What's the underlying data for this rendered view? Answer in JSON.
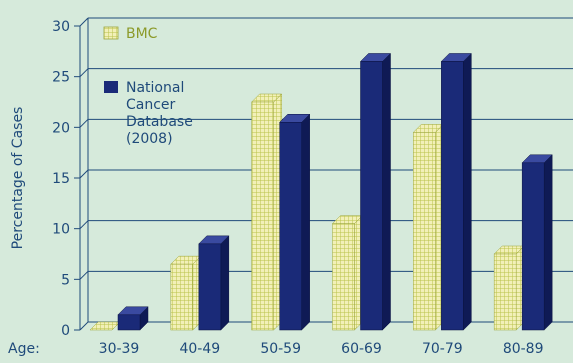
{
  "chart_data": {
    "type": "bar",
    "title": "",
    "xlabel": "Age:",
    "ylabel": "Percentage of Cases",
    "ylim": [
      0,
      30
    ],
    "yticks": [
      0,
      5,
      10,
      15,
      20,
      25,
      30
    ],
    "grid": true,
    "legend_position": "top-left",
    "categories": [
      "30-39",
      "40-49",
      "50-59",
      "60-69",
      "70-79",
      "80-89"
    ],
    "series": [
      {
        "name": "BMC",
        "values": [
          0,
          6.5,
          22.5,
          10.5,
          19.5,
          7.5
        ],
        "color": "#f2f0b8",
        "pattern": "grid",
        "legend_label_lines": [
          "BMC"
        ]
      },
      {
        "name": "National Cancer Database (2008)",
        "values": [
          1.5,
          8.5,
          20.5,
          26.5,
          26.5,
          16.5
        ],
        "color": "#1a2a78",
        "pattern": "solid",
        "legend_label_lines": [
          "National",
          "Cancer",
          "Database",
          "(2008)"
        ]
      }
    ],
    "colors": {
      "background": "#d6eadb",
      "axis": "#1f4a7a",
      "grid": "#1f4a7a",
      "bmc_face": "#f2f0b8",
      "bmc_pattern": "#b9c24a",
      "ncdb_face": "#1a2a78",
      "ncdb_side": "#0f1a55",
      "ncdb_top": "#3a4aa0"
    }
  }
}
